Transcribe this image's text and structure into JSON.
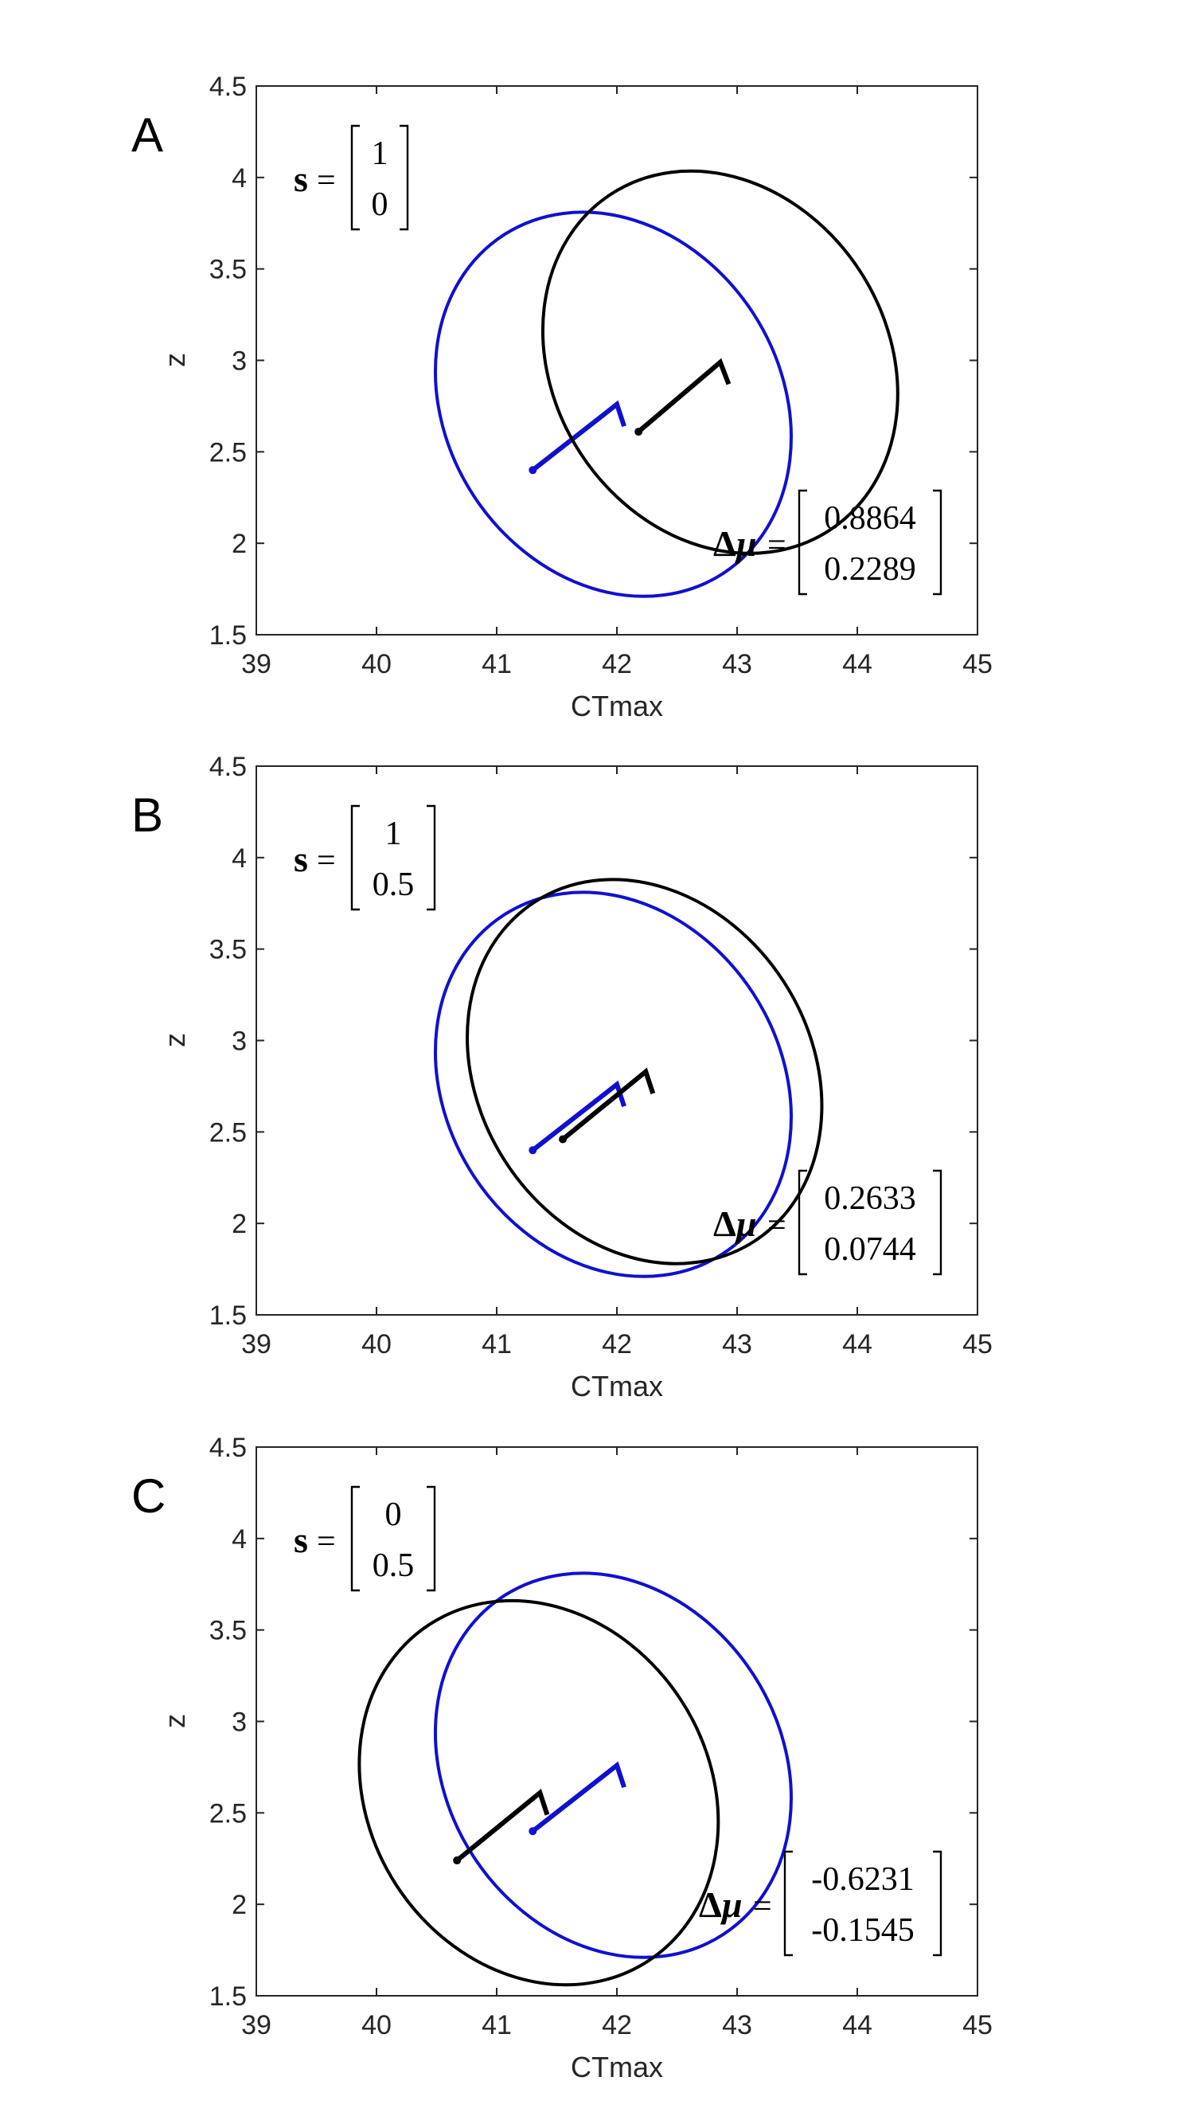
{
  "colors": {
    "blue": "#1010d0",
    "black": "#000000"
  },
  "chart_data": [
    {
      "type": "line",
      "panel": "A",
      "xlabel": "CTmax",
      "ylabel": "z",
      "xlim": [
        39,
        45
      ],
      "ylim": [
        1.5,
        4.5
      ],
      "xticks": [
        "39",
        "40",
        "41",
        "42",
        "43",
        "44",
        "45"
      ],
      "yticks": [
        "1.5",
        "2",
        "2.5",
        "3",
        "3.5",
        "4",
        "4.5"
      ],
      "s_label": "s",
      "s_values": [
        "1",
        "0"
      ],
      "dmu_label": "Δμ",
      "dmu_values": [
        "0.8864",
        "0.2289"
      ],
      "series": [
        {
          "color": "blue",
          "ellipse_center": [
            41.97,
            2.76
          ],
          "ellipse_extents": [
            40.13,
            43.82,
            1.71,
            3.81
          ],
          "path": [
            [
              41.3,
              2.4
            ],
            [
              42.0,
              2.76
            ],
            [
              42.06,
              2.64
            ]
          ]
        },
        {
          "color": "black",
          "ellipse_center": [
            42.86,
            2.99
          ],
          "ellipse_extents": [
            41.04,
            44.7,
            1.94,
            4.03
          ],
          "path": [
            [
              42.18,
              2.61
            ],
            [
              42.86,
              2.99
            ],
            [
              42.93,
              2.87
            ]
          ]
        }
      ]
    },
    {
      "type": "line",
      "panel": "B",
      "xlabel": "CTmax",
      "ylabel": "z",
      "xlim": [
        39,
        45
      ],
      "ylim": [
        1.5,
        4.5
      ],
      "xticks": [
        "39",
        "40",
        "41",
        "42",
        "43",
        "44",
        "45"
      ],
      "yticks": [
        "1.5",
        "2",
        "2.5",
        "3",
        "3.5",
        "4",
        "4.5"
      ],
      "s_label": "s",
      "s_values": [
        "1",
        "0.5"
      ],
      "dmu_label": "Δμ",
      "dmu_values": [
        "0.2633",
        "0.0744"
      ],
      "series": [
        {
          "color": "blue",
          "ellipse_center": [
            41.97,
            2.76
          ],
          "ellipse_extents": [
            40.13,
            43.82,
            1.71,
            3.81
          ],
          "path": [
            [
              41.3,
              2.4
            ],
            [
              42.0,
              2.76
            ],
            [
              42.06,
              2.64
            ]
          ]
        },
        {
          "color": "black",
          "ellipse_center": [
            42.23,
            2.83
          ],
          "ellipse_extents": [
            40.38,
            44.09,
            1.78,
            3.88
          ],
          "path": [
            [
              41.55,
              2.46
            ],
            [
              42.24,
              2.83
            ],
            [
              42.3,
              2.71
            ]
          ]
        }
      ]
    },
    {
      "type": "line",
      "panel": "C",
      "xlabel": "CTmax",
      "ylabel": "z",
      "xlim": [
        39,
        45
      ],
      "ylim": [
        1.5,
        4.5
      ],
      "xticks": [
        "39",
        "40",
        "41",
        "42",
        "43",
        "44",
        "45"
      ],
      "yticks": [
        "1.5",
        "2",
        "2.5",
        "3",
        "3.5",
        "4",
        "4.5"
      ],
      "s_label": "s",
      "s_values": [
        "0",
        "0.5"
      ],
      "dmu_label": "Δμ",
      "dmu_values": [
        "-0.6231",
        "-0.1545"
      ],
      "series": [
        {
          "color": "blue",
          "ellipse_center": [
            41.97,
            2.76
          ],
          "ellipse_extents": [
            40.13,
            43.82,
            1.71,
            3.81
          ],
          "path": [
            [
              41.3,
              2.4
            ],
            [
              42.0,
              2.76
            ],
            [
              42.06,
              2.64
            ]
          ]
        },
        {
          "color": "black",
          "ellipse_center": [
            41.35,
            2.61
          ],
          "ellipse_extents": [
            39.54,
            43.18,
            1.56,
            3.66
          ],
          "path": [
            [
              40.67,
              2.24
            ],
            [
              41.36,
              2.61
            ],
            [
              41.42,
              2.49
            ]
          ]
        }
      ]
    }
  ]
}
